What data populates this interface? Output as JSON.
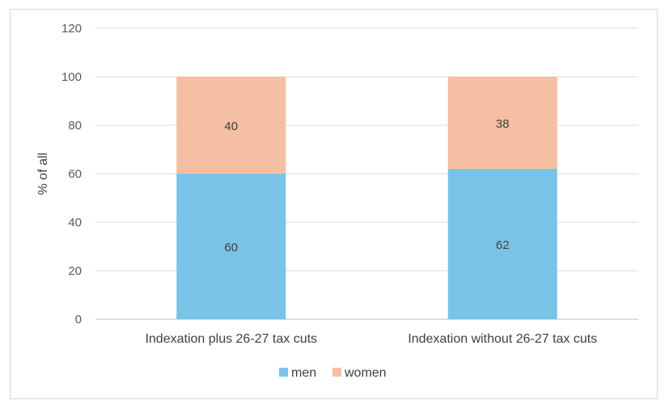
{
  "chart_data": {
    "type": "bar",
    "stacked": true,
    "categories": [
      "Indexation plus 26-27 tax cuts",
      "Indexation without 26-27 tax cuts"
    ],
    "series": [
      {
        "name": "men",
        "values": [
          60,
          62
        ],
        "color": "#7ac3e8"
      },
      {
        "name": "women",
        "values": [
          40,
          38
        ],
        "color": "#f4bfa2"
      }
    ],
    "ylabel": "% of all",
    "xlabel": "",
    "ylim": [
      0,
      120
    ],
    "yticks": [
      0,
      20,
      40,
      60,
      80,
      100,
      120
    ],
    "grid": true,
    "legend_position": "bottom"
  }
}
